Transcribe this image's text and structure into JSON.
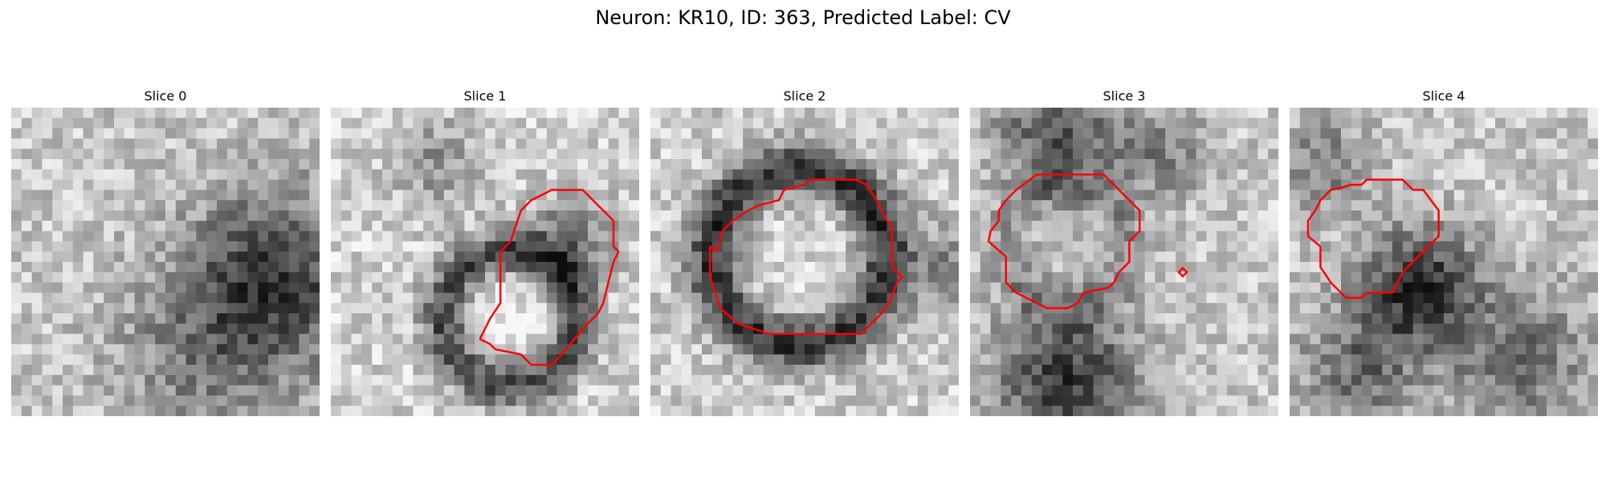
{
  "figure": {
    "title": "Neuron: KR10, ID: 363, Predicted Label: CV",
    "contour_color": "#ff0000",
    "colormap": "gray"
  },
  "panels": [
    {
      "title": "Slice 0",
      "has_contour": false
    },
    {
      "title": "Slice 1",
      "has_contour": true
    },
    {
      "title": "Slice 2",
      "has_contour": true
    },
    {
      "title": "Slice 3",
      "has_contour": true
    },
    {
      "title": "Slice 4",
      "has_contour": true
    }
  ]
}
